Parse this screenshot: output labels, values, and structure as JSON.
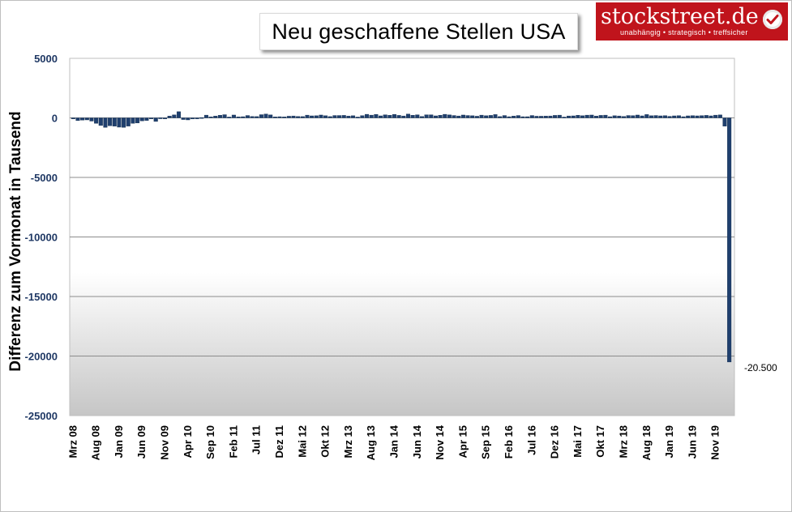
{
  "brand": {
    "name": "stockstreet.de",
    "tagline": "unabhängig • strategisch • treffsicher",
    "color": "#c0141c"
  },
  "chart_data": {
    "type": "bar",
    "title": "Neu geschaffene Stellen USA",
    "xlabel": "",
    "ylabel": "Differenz zum Vormonat in Tausend",
    "ylim": [
      -25000,
      5000
    ],
    "yticks": [
      5000,
      0,
      -5000,
      -10000,
      -15000,
      -20000,
      -25000
    ],
    "ytick_labels": [
      "5000",
      "0",
      "-5000",
      "-10000",
      "-15000",
      "-20000",
      "-25000"
    ],
    "grid": true,
    "legend": "none",
    "bar_color": "#1f3f6e",
    "start_month": "Mrz 08",
    "x_tick_labels": [
      "Mrz 08",
      "Aug 08",
      "Jan 09",
      "Jun 09",
      "Nov 09",
      "Apr 10",
      "Sep 10",
      "Feb 11",
      "Jul 11",
      "Dez 11",
      "Mai 12",
      "Okt 12",
      "Mrz 13",
      "Aug 13",
      "Jan 14",
      "Jun 14",
      "Nov 14",
      "Apr 15",
      "Sep 15",
      "Feb 16",
      "Jul 16",
      "Dez 16",
      "Mai 17",
      "Okt 17",
      "Mrz 18",
      "Aug 18",
      "Jan 19",
      "Jun 19",
      "Nov 19"
    ],
    "values": [
      -50,
      -230,
      -190,
      -170,
      -270,
      -460,
      -640,
      -800,
      -660,
      -700,
      -780,
      -800,
      -690,
      -460,
      -430,
      -250,
      -220,
      -50,
      -300,
      10,
      -40,
      150,
      250,
      520,
      -140,
      -170,
      -90,
      -60,
      30,
      230,
      90,
      150,
      220,
      270,
      70,
      240,
      90,
      100,
      200,
      120,
      110,
      270,
      320,
      250,
      80,
      100,
      80,
      140,
      160,
      120,
      110,
      230,
      170,
      180,
      240,
      180,
      110,
      200,
      200,
      210,
      150,
      180,
      70,
      190,
      300,
      230,
      290,
      170,
      260,
      220,
      290,
      210,
      160,
      320,
      220,
      260,
      120,
      260,
      260,
      170,
      220,
      300,
      250,
      200,
      160,
      240,
      200,
      180,
      140,
      230,
      180,
      210,
      280,
      110,
      200,
      100,
      150,
      200,
      100,
      100,
      200,
      140,
      140,
      150,
      160,
      210,
      230,
      70,
      160,
      170,
      220,
      180,
      230,
      240,
      150,
      210,
      230,
      100,
      180,
      160,
      120,
      200,
      190,
      240,
      170,
      280,
      180,
      200,
      170,
      190,
      130,
      170,
      190,
      100,
      170,
      190,
      170,
      190,
      210,
      170,
      230,
      250,
      -700,
      -20500
    ],
    "annotations": [
      {
        "label": "-20.500"
      }
    ]
  }
}
